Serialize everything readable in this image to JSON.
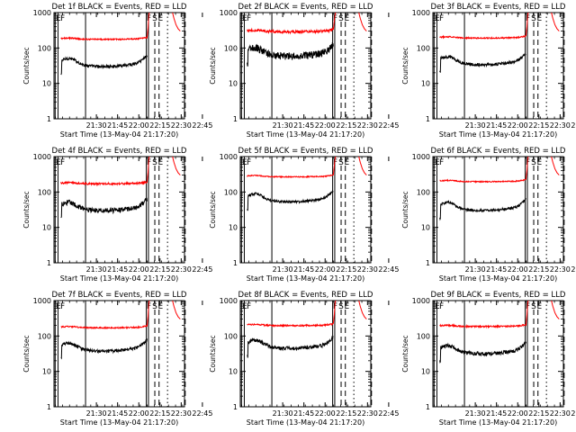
{
  "chart_data": {
    "type": "line",
    "x_tick_labels": [
      "21:30",
      "21:45",
      "22:00",
      "22:15",
      "22:30",
      "22:45"
    ],
    "x_range_minutes": [
      -17.33,
      75
    ],
    "y_tick_labels": [
      "1",
      "10",
      "100",
      "1000"
    ],
    "y_range": [
      1,
      1000
    ],
    "y_scale": "log",
    "ylabel": "Counts/sec",
    "xlabel": "Start Time (13-May-04 21:17:20)",
    "series_colors": {
      "black": "#000000",
      "red": "#ff0000"
    },
    "markers": [
      "E",
      "F",
      "F",
      "S",
      "E"
    ],
    "marker_minutes": {
      "E": 0,
      "F1": 14.0,
      "F2": 71.0,
      "S": 73.0,
      "E2": 77.0
    },
    "solid_lines_minutes": [
      -16.5,
      -14.5,
      5.0,
      48.0,
      49.5
    ],
    "dashed_lines_minutes": [
      54.0,
      57.0,
      75.5
    ],
    "dotted_lines_minutes": [
      63.0
    ],
    "panels": [
      {
        "title": "Det 1f BLACK = Events, RED = LLD",
        "black_base": 40,
        "red_base": 170,
        "noise": 0.05
      },
      {
        "title": "Det 2f BLACK = Events, RED = LLD",
        "black_base": 80,
        "red_base": 280,
        "noise": 0.12
      },
      {
        "title": "Det 3f BLACK = Events, RED = LLD",
        "black_base": 45,
        "red_base": 185,
        "noise": 0.05
      },
      {
        "title": "Det 4f BLACK = Events, RED = LLD",
        "black_base": 40,
        "red_base": 165,
        "noise": 0.08
      },
      {
        "title": "Det 5f BLACK = Events, RED = LLD",
        "black_base": 70,
        "red_base": 260,
        "noise": 0.04
      },
      {
        "title": "Det 6f BLACK = Events, RED = LLD",
        "black_base": 40,
        "red_base": 190,
        "noise": 0.04
      },
      {
        "title": "Det 7f BLACK = Events, RED = LLD",
        "black_base": 50,
        "red_base": 165,
        "noise": 0.05
      },
      {
        "title": "Det 8f BLACK = Events, RED = LLD",
        "black_base": 60,
        "red_base": 190,
        "noise": 0.06
      },
      {
        "title": "Det 9f BLACK = Events, RED = LLD",
        "black_base": 42,
        "red_base": 180,
        "noise": 0.06
      }
    ]
  }
}
